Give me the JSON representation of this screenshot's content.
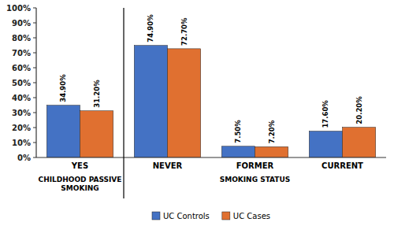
{
  "chart_data": {
    "type": "bar",
    "categories": [
      "YES",
      "NEVER",
      "FORMER",
      "CURRENT"
    ],
    "series": [
      {
        "name": "UC Controls",
        "color": "#4472C4",
        "values": [
          34.9,
          74.9,
          7.5,
          17.6
        ],
        "value_labels": [
          "34.90%",
          "74.90%",
          "7.50%",
          "17.60%"
        ]
      },
      {
        "name": "UC Cases",
        "color": "#E07030",
        "values": [
          31.2,
          72.7,
          7.2,
          20.2
        ],
        "value_labels": [
          "31.20%",
          "72.70%",
          "7.20%",
          "20.20%"
        ]
      }
    ],
    "ylim": [
      0,
      100
    ],
    "yticks": [
      {
        "value": 0,
        "label": "0%"
      },
      {
        "value": 10,
        "label": "10%"
      },
      {
        "value": 20,
        "label": "20%"
      },
      {
        "value": 30,
        "label": "30%"
      },
      {
        "value": 40,
        "label": "40%"
      },
      {
        "value": 50,
        "label": "50%"
      },
      {
        "value": 60,
        "label": "60%"
      },
      {
        "value": 70,
        "label": "70%"
      },
      {
        "value": 80,
        "label": "80%"
      },
      {
        "value": 90,
        "label": "90%"
      },
      {
        "value": 100,
        "label": "100%"
      }
    ],
    "annotations": [
      "CHILDHOOD PASSIVE\nSMOKING",
      "SMOKING STATUS"
    ],
    "data_labels": true,
    "grid": false,
    "legend": "bottom"
  }
}
